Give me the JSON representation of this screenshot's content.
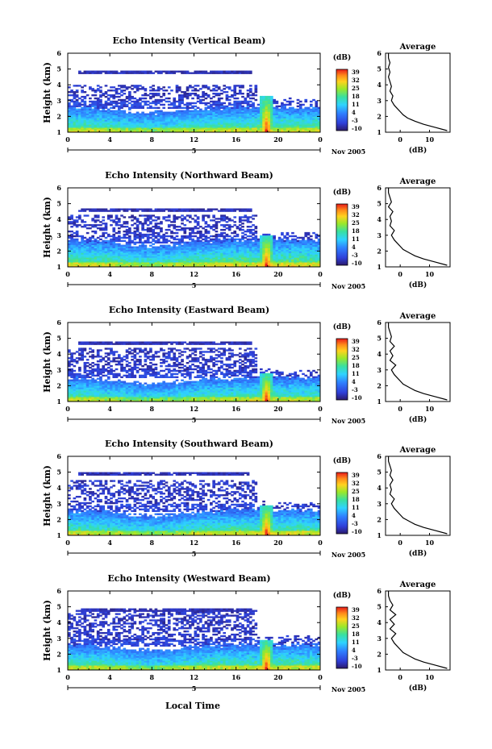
{
  "figure": {
    "xlabel": "Local Time",
    "date_label": "Nov 2005",
    "day_label": "5",
    "x_ticks": [
      "0",
      "4",
      "8",
      "12",
      "16",
      "20",
      "0"
    ],
    "y_ticks": [
      "1",
      "2",
      "3",
      "4",
      "5",
      "6"
    ],
    "ylabel": "Height (km)",
    "cb_label": "(dB)",
    "cb_ticks": [
      "39",
      "32",
      "25",
      "18",
      "11",
      "4",
      "-3",
      "-10"
    ],
    "avg_title": "Average",
    "avg_xlabel": "(dB)",
    "avg_x_ticks": [
      "0",
      "10"
    ]
  },
  "chart_data": [
    {
      "type": "heatmap",
      "title": "Echo Intensity (Vertical Beam)",
      "xlabel": "Local Time",
      "ylabel": "Height (km)",
      "xlim": [
        0,
        24
      ],
      "ylim": [
        1,
        6
      ],
      "colorbar": {
        "label": "(dB)",
        "range": [
          -10,
          39
        ]
      },
      "features": {
        "top_layer": 4.8,
        "upper_band": [
          3.0,
          4.0
        ],
        "lower_band_top": 2.6,
        "event_hour": 18.9,
        "event_top": 3.3,
        "data_end_hour": 18.0
      },
      "average_profile": {
        "title": "Average",
        "xlabel": "(dB)",
        "xlim": [
          -5,
          17
        ],
        "height": [
          1.1,
          1.3,
          1.5,
          1.7,
          1.9,
          2.1,
          2.3,
          2.5,
          2.7,
          3.0,
          3.3,
          3.6,
          3.9,
          4.2,
          4.5,
          4.8,
          5.1,
          5.4,
          5.7,
          6.0
        ],
        "value": [
          16,
          12,
          8,
          5,
          2.5,
          1,
          0,
          -1,
          -2,
          -3,
          -2.5,
          -3.5,
          -3,
          -3.5,
          -4,
          -3.5,
          -4,
          -3.5,
          -4,
          -4
        ]
      }
    },
    {
      "type": "heatmap",
      "title": "Echo Intensity (Northward Beam)",
      "xlabel": "Local Time",
      "ylabel": "Height (km)",
      "xlim": [
        0,
        24
      ],
      "ylim": [
        1,
        6
      ],
      "colorbar": {
        "label": "(dB)",
        "range": [
          -10,
          39
        ]
      },
      "features": {
        "top_layer": 4.6,
        "upper_band": [
          2.9,
          4.3
        ],
        "lower_band_top": 2.7,
        "event_hour": 18.9,
        "event_top": 3.0,
        "data_end_hour": 18.0
      },
      "average_profile": {
        "title": "Average",
        "xlabel": "(dB)",
        "xlim": [
          -5,
          17
        ],
        "height": [
          1.1,
          1.3,
          1.5,
          1.7,
          1.9,
          2.1,
          2.3,
          2.5,
          2.7,
          3.0,
          3.3,
          3.6,
          3.9,
          4.2,
          4.5,
          4.8,
          5.1,
          5.4,
          5.7,
          6.0
        ],
        "value": [
          16,
          12,
          8,
          5,
          3,
          1,
          0,
          -1,
          -2,
          -3,
          -2,
          -3.5,
          -3,
          -3.5,
          -2.5,
          -4,
          -3,
          -3.5,
          -4,
          -4
        ]
      }
    },
    {
      "type": "heatmap",
      "title": "Echo Intensity (Eastward Beam)",
      "xlabel": "Local Time",
      "ylabel": "Height (km)",
      "xlim": [
        0,
        24
      ],
      "ylim": [
        1,
        6
      ],
      "colorbar": {
        "label": "(dB)",
        "range": [
          -10,
          39
        ]
      },
      "features": {
        "top_layer": 4.7,
        "upper_band": [
          2.9,
          4.4
        ],
        "lower_band_top": 2.5,
        "event_hour": 18.9,
        "event_top": 2.8,
        "data_end_hour": 18.0
      },
      "average_profile": {
        "title": "Average",
        "xlabel": "(dB)",
        "xlim": [
          -5,
          17
        ],
        "height": [
          1.1,
          1.3,
          1.5,
          1.7,
          1.9,
          2.1,
          2.3,
          2.5,
          2.7,
          3.0,
          3.3,
          3.6,
          3.9,
          4.2,
          4.5,
          4.8,
          5.1,
          5.4,
          5.7,
          6.0
        ],
        "value": [
          16,
          12,
          8,
          5,
          3,
          1,
          0,
          -1,
          -2,
          -3,
          -1.5,
          -3.5,
          -2.5,
          -3.5,
          -2,
          -3.5,
          -3,
          -3.5,
          -4,
          -4
        ]
      }
    },
    {
      "type": "heatmap",
      "title": "Echo Intensity (Southward Beam)",
      "xlabel": "Local Time",
      "ylabel": "Height (km)",
      "xlim": [
        0,
        24
      ],
      "ylim": [
        1,
        6
      ],
      "colorbar": {
        "label": "(dB)",
        "range": [
          -10,
          39
        ]
      },
      "features": {
        "top_layer": 4.9,
        "upper_band": [
          3.0,
          4.5
        ],
        "lower_band_top": 2.6,
        "event_hour": 18.9,
        "event_top": 2.9,
        "data_end_hour": 18.0
      },
      "average_profile": {
        "title": "Average",
        "xlabel": "(dB)",
        "xlim": [
          -5,
          17
        ],
        "height": [
          1.1,
          1.3,
          1.5,
          1.7,
          1.9,
          2.1,
          2.3,
          2.5,
          2.7,
          3.0,
          3.3,
          3.6,
          3.9,
          4.2,
          4.5,
          4.8,
          5.1,
          5.4,
          5.7,
          6.0
        ],
        "value": [
          16,
          12,
          8,
          5,
          3,
          1,
          0,
          -1,
          -2,
          -3,
          -2,
          -3.5,
          -3,
          -3.5,
          -2.5,
          -3.5,
          -3,
          -3.5,
          -4,
          -4
        ]
      }
    },
    {
      "type": "heatmap",
      "title": "Echo Intensity (Westward Beam)",
      "xlabel": "Local Time",
      "ylabel": "Height (km)",
      "xlim": [
        0,
        24
      ],
      "ylim": [
        1,
        6
      ],
      "colorbar": {
        "label": "(dB)",
        "range": [
          -10,
          39
        ]
      },
      "features": {
        "top_layer": 4.8,
        "upper_band": [
          2.9,
          4.8
        ],
        "lower_band_top": 2.6,
        "event_hour": 18.9,
        "event_top": 2.9,
        "data_end_hour": 18.0
      },
      "average_profile": {
        "title": "Average",
        "xlabel": "(dB)",
        "xlim": [
          -5,
          17
        ],
        "height": [
          1.1,
          1.3,
          1.5,
          1.7,
          1.9,
          2.1,
          2.3,
          2.5,
          2.7,
          3.0,
          3.3,
          3.6,
          3.9,
          4.2,
          4.5,
          4.8,
          5.1,
          5.4,
          5.7,
          6.0
        ],
        "value": [
          16,
          12,
          8,
          5,
          3,
          1,
          0,
          -1,
          -2,
          -3,
          -1.5,
          -3.5,
          -2,
          -3.5,
          -1.5,
          -3.5,
          -2.5,
          -3.5,
          -4,
          -4
        ]
      }
    }
  ]
}
